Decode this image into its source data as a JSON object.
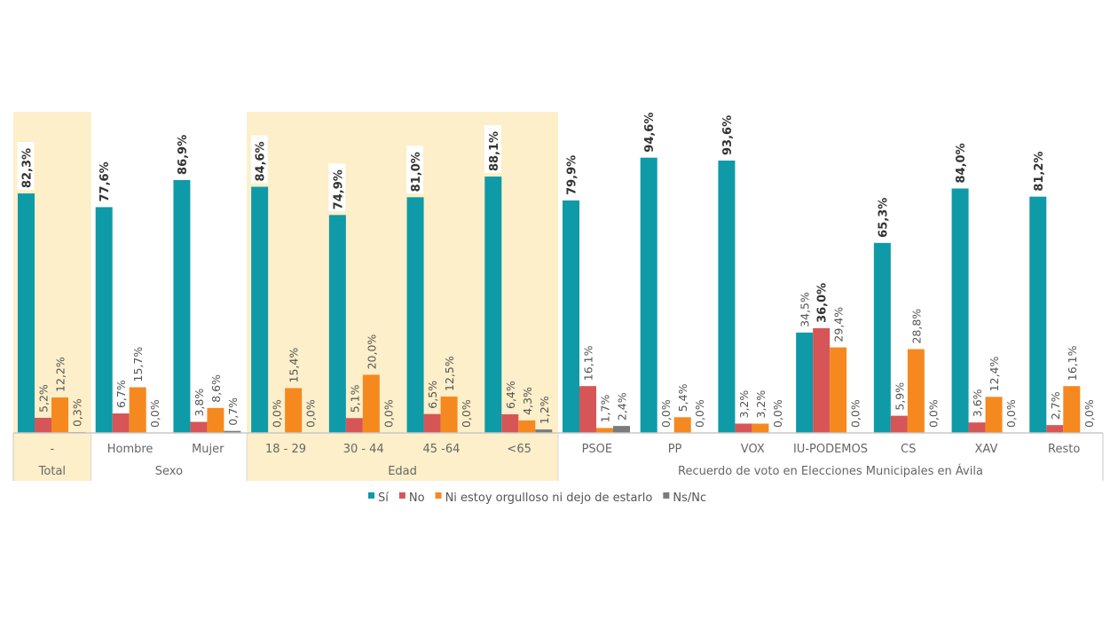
{
  "chart_data": {
    "type": "bar",
    "title": "",
    "xlabel": "",
    "ylabel": "",
    "ylim": [
      0,
      100
    ],
    "grid": false,
    "legend_position": "bottom",
    "categories": [
      "-",
      "Hombre",
      "Mujer",
      "18 - 29",
      "30 - 44",
      "45 -64",
      "<65",
      "PSOE",
      "PP",
      "VOX",
      "IU-PODEMOS",
      "CS",
      "XAV",
      "Resto"
    ],
    "groups": [
      {
        "label": "Total",
        "count": 1,
        "highlight": true
      },
      {
        "label": "Sexo",
        "count": 2,
        "highlight": false
      },
      {
        "label": "Edad",
        "count": 4,
        "highlight": true
      },
      {
        "label": "Recuerdo de voto en Elecciones Municipales en Ávila",
        "count": 7,
        "highlight": false
      }
    ],
    "series": [
      {
        "name": "Sí",
        "color": "#0f9aa8",
        "values": [
          82.3,
          77.6,
          86.9,
          84.6,
          74.9,
          81.0,
          88.1,
          79.9,
          94.6,
          93.6,
          34.5,
          65.3,
          84.0,
          81.2
        ],
        "labels": [
          "82,3%",
          "77,6%",
          "86,9%",
          "84,6%",
          "74,9%",
          "81,0%",
          "88,1%",
          "79,9%",
          "94,6%",
          "93,6%",
          "34,5%",
          "65,3%",
          "84,0%",
          "81,2%"
        ]
      },
      {
        "name": "No",
        "color": "#d65657",
        "values": [
          5.2,
          6.7,
          3.8,
          0.0,
          5.1,
          6.5,
          6.4,
          16.1,
          0.0,
          3.2,
          36.0,
          5.9,
          3.6,
          2.7
        ],
        "labels": [
          "5,2%",
          "6,7%",
          "3,8%",
          "0,0%",
          "5,1%",
          "6,5%",
          "6,4%",
          "16,1%",
          "0,0%",
          "3,2%",
          "36,0%",
          "5,9%",
          "3,6%",
          "2,7%"
        ]
      },
      {
        "name": "Ni estoy orgulloso ni dejo de estarlo",
        "color": "#f5891f",
        "values": [
          12.2,
          15.7,
          8.6,
          15.4,
          20.0,
          12.5,
          4.3,
          1.7,
          5.4,
          3.2,
          29.4,
          28.8,
          12.4,
          16.1
        ],
        "labels": [
          "12,2%",
          "15,7%",
          "8,6%",
          "15,4%",
          "20,0%",
          "12,5%",
          "4,3%",
          "1,7%",
          "5,4%",
          "3,2%",
          "29,4%",
          "28,8%",
          "12,4%",
          "16,1%"
        ]
      },
      {
        "name": "Ns/Nc",
        "color": "#7b7b7b",
        "values": [
          0.3,
          0.0,
          0.7,
          0.0,
          0.0,
          0.0,
          1.2,
          2.4,
          0.0,
          0.0,
          0.0,
          0.0,
          0.0,
          0.0
        ],
        "labels": [
          "0,3%",
          "0,0%",
          "0,7%",
          "0,0%",
          "0,0%",
          "0,0%",
          "1,2%",
          "2,4%",
          "0,0%",
          "0,0%",
          "0,0%",
          "0,0%",
          "0,0%",
          "0,0%"
        ]
      }
    ]
  }
}
